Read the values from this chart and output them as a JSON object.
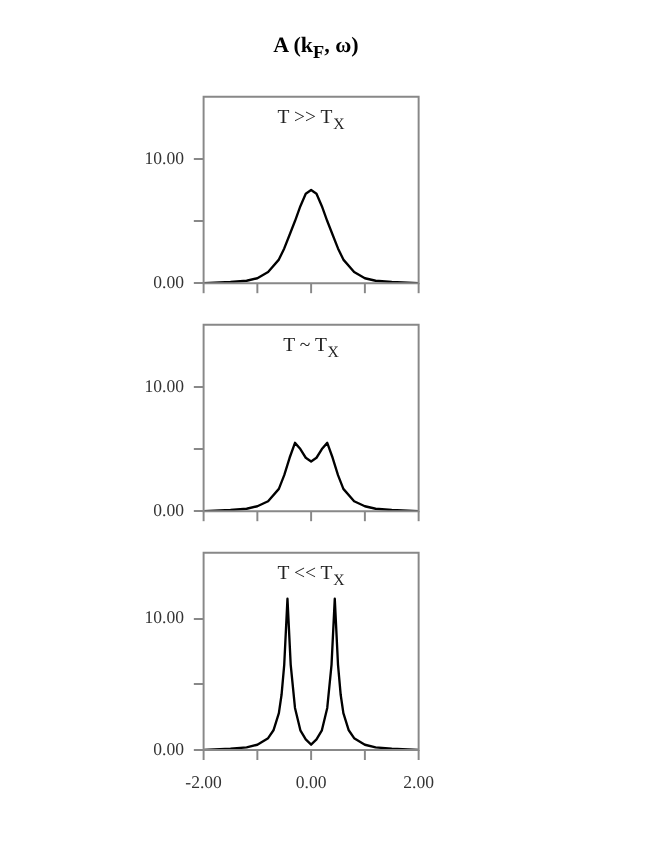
{
  "chart_data": [
    {
      "type": "line",
      "title": "A (k$_{F}$, ω)",
      "annotations": [
        "T >> T$_{X}$"
      ],
      "xlim": [
        -2,
        2
      ],
      "xticks": [
        {
          "value": -2,
          "label": null
        },
        {
          "value": -1,
          "label": null
        },
        {
          "value": 0,
          "label": null
        },
        {
          "value": 1,
          "label": null
        },
        {
          "value": 2,
          "label": null
        }
      ],
      "ylim": [
        0,
        15
      ],
      "yticks": [
        {
          "value": 0,
          "label": "0.00"
        },
        {
          "value": 5,
          "label": null
        },
        {
          "value": 10,
          "label": "10.00"
        }
      ],
      "tick_labels": "y",
      "marker": "none",
      "line_style": "solid",
      "series": [
        {
          "color": "#000000",
          "x": [
            -2,
            -1.5,
            -1.2,
            -1,
            -0.8,
            -0.6,
            -0.5,
            -0.4,
            -0.3,
            -0.2,
            -0.1,
            0,
            0.1,
            0.2,
            0.3,
            0.4,
            0.5,
            0.6,
            0.8,
            1,
            1.2,
            1.5,
            2
          ],
          "values": [
            0,
            0.1,
            0.2,
            0.4,
            0.9,
            1.9,
            2.8,
            3.9,
            5.0,
            6.2,
            7.2,
            7.5,
            7.2,
            6.2,
            5.0,
            3.9,
            2.8,
            1.9,
            0.9,
            0.4,
            0.2,
            0.1,
            0
          ]
        }
      ]
    },
    {
      "type": "line",
      "annotations": [
        "T ~ T$_{X}$"
      ],
      "xlim": [
        -2,
        2
      ],
      "xticks": [
        {
          "value": -2,
          "label": null
        },
        {
          "value": -1,
          "label": null
        },
        {
          "value": 0,
          "label": null
        },
        {
          "value": 1,
          "label": null
        },
        {
          "value": 2,
          "label": null
        }
      ],
      "ylim": [
        0,
        15
      ],
      "yticks": [
        {
          "value": 0,
          "label": "0.00"
        },
        {
          "value": 5,
          "label": null
        },
        {
          "value": 10,
          "label": "10.00"
        }
      ],
      "tick_labels": "y",
      "marker": "none",
      "line_style": "solid",
      "series": [
        {
          "color": "#000000",
          "x": [
            -2,
            -1.5,
            -1.2,
            -1,
            -0.8,
            -0.6,
            -0.5,
            -0.4,
            -0.3,
            -0.2,
            -0.1,
            0,
            0.1,
            0.2,
            0.3,
            0.4,
            0.5,
            0.6,
            0.8,
            1,
            1.2,
            1.5,
            2
          ],
          "values": [
            0,
            0.1,
            0.2,
            0.4,
            0.8,
            1.8,
            2.9,
            4.3,
            5.5,
            5.0,
            4.3,
            4.0,
            4.3,
            5.0,
            5.5,
            4.3,
            2.9,
            1.8,
            0.8,
            0.4,
            0.2,
            0.1,
            0
          ]
        }
      ]
    },
    {
      "type": "line",
      "annotations": [
        "T << T$_{X}$"
      ],
      "xlim": [
        -2,
        2
      ],
      "xticks": [
        {
          "value": -2,
          "label": "-2.00"
        },
        {
          "value": -1,
          "label": null
        },
        {
          "value": 0,
          "label": "0.00"
        },
        {
          "value": 1,
          "label": null
        },
        {
          "value": 2,
          "label": "2.00"
        }
      ],
      "ylim": [
        0,
        15
      ],
      "yticks": [
        {
          "value": 0,
          "label": "0.00"
        },
        {
          "value": 5,
          "label": null
        },
        {
          "value": 10,
          "label": "10.00"
        }
      ],
      "marker": "none",
      "line_style": "solid",
      "series": [
        {
          "color": "#000000",
          "x": [
            -2,
            -1.5,
            -1.2,
            -1,
            -0.8,
            -0.7,
            -0.6,
            -0.55,
            -0.5,
            -0.44,
            -0.38,
            -0.3,
            -0.2,
            -0.1,
            0,
            0.1,
            0.2,
            0.3,
            0.38,
            0.44,
            0.5,
            0.55,
            0.6,
            0.7,
            0.8,
            1,
            1.2,
            1.5,
            2
          ],
          "values": [
            0,
            0.1,
            0.2,
            0.4,
            0.9,
            1.5,
            2.8,
            4.2,
            6.5,
            11.5,
            6.5,
            3.2,
            1.5,
            0.8,
            0.4,
            0.8,
            1.5,
            3.2,
            6.5,
            11.5,
            6.5,
            4.2,
            2.8,
            1.5,
            0.9,
            0.4,
            0.2,
            0.1,
            0
          ]
        }
      ]
    }
  ]
}
